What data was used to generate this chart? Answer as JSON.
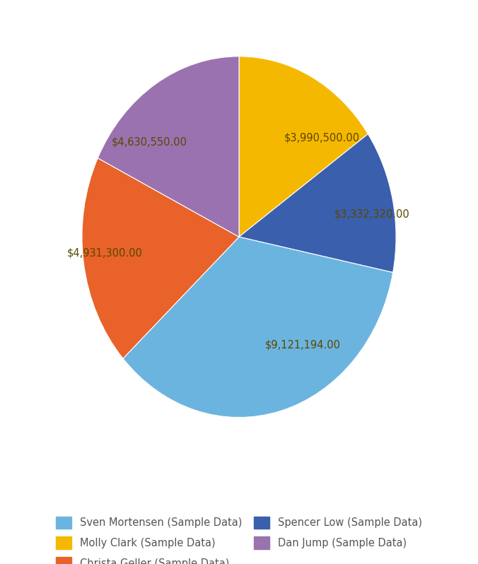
{
  "plot_order": [
    {
      "label": "Molly Clark (Sample Data)",
      "value": 3990500.0,
      "color": "#f5b800"
    },
    {
      "label": "Spencer Low (Sample Data)",
      "value": 3332320.0,
      "color": "#3a5fac"
    },
    {
      "label": "Sven Mortensen (Sample Data)",
      "value": 9121194.0,
      "color": "#6cb4e0"
    },
    {
      "label": "Christa Geller (Sample Data)",
      "value": 4931300.0,
      "color": "#e8622a"
    },
    {
      "label": "Dan Jump (Sample Data)",
      "value": 4630550.0,
      "color": "#9b72b0"
    }
  ],
  "legend_order": [
    {
      "label": "Sven Mortensen (Sample Data)",
      "color": "#6cb4e0"
    },
    {
      "label": "Molly Clark (Sample Data)",
      "color": "#f5b800"
    },
    {
      "label": "Christa Geller (Sample Data)",
      "color": "#e8622a"
    },
    {
      "label": "Spencer Low (Sample Data)",
      "color": "#3a5fac"
    },
    {
      "label": "Dan Jump (Sample Data)",
      "color": "#9b72b0"
    }
  ],
  "label_color": "#5a4800",
  "label_fontsize": 10.5,
  "legend_fontsize": 10.5,
  "background_color": "#ffffff",
  "startangle": 90,
  "fig_width": 6.76,
  "fig_height": 7.98
}
